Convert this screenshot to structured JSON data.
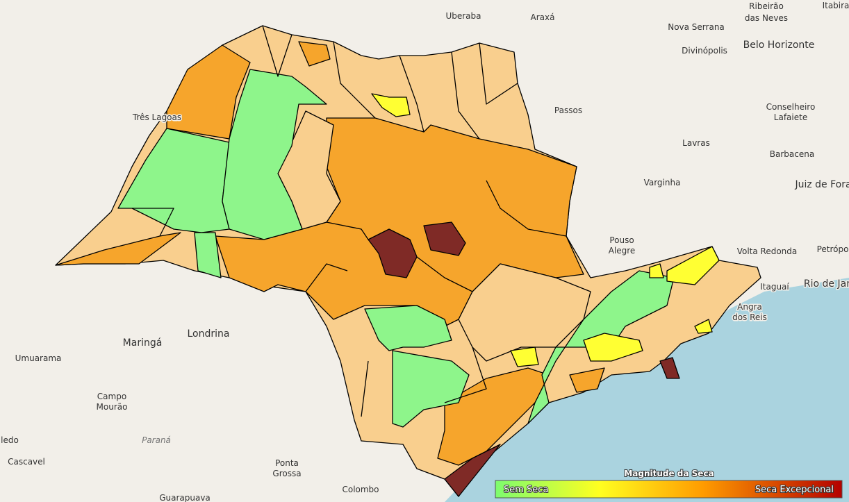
{
  "cities": [
    [
      "Uberaba"
    ],
    [
      "Araxá"
    ],
    [
      "Ribeirão",
      "das Neves"
    ],
    [
      "Itabira"
    ],
    [
      "Nova Serrana"
    ],
    [
      "Divinópolis"
    ],
    [
      "Belo Horizonte"
    ],
    [
      "Três Lagoas"
    ],
    [
      "Passos"
    ],
    [
      "Conselheiro",
      "Lafaiete"
    ],
    [
      "Lavras"
    ],
    [
      "Barbacena"
    ],
    [
      "Varginha"
    ],
    [
      "Juiz de Fora"
    ],
    [
      "Pouso",
      "Alegre"
    ],
    [
      "Volta Redonda"
    ],
    [
      "Petrópolis"
    ],
    [
      "Itaguaí"
    ],
    [
      "Rio de Jan"
    ],
    [
      "Angra",
      "dos Reis"
    ],
    [
      "Maringá"
    ],
    [
      "Londrina"
    ],
    [
      "Umuarama"
    ],
    [
      "Campo",
      "Mourão"
    ],
    [
      "Paraná"
    ],
    [
      "ledo"
    ],
    [
      "Cascavel"
    ],
    [
      "Ponta",
      "Grossa"
    ],
    [
      "Colombo"
    ],
    [
      "Guarapuava"
    ]
  ],
  "legend": {
    "title": "Magnitude da Seca",
    "min_label": "Sem Seca",
    "max_label": "Seca Excepcional"
  }
}
